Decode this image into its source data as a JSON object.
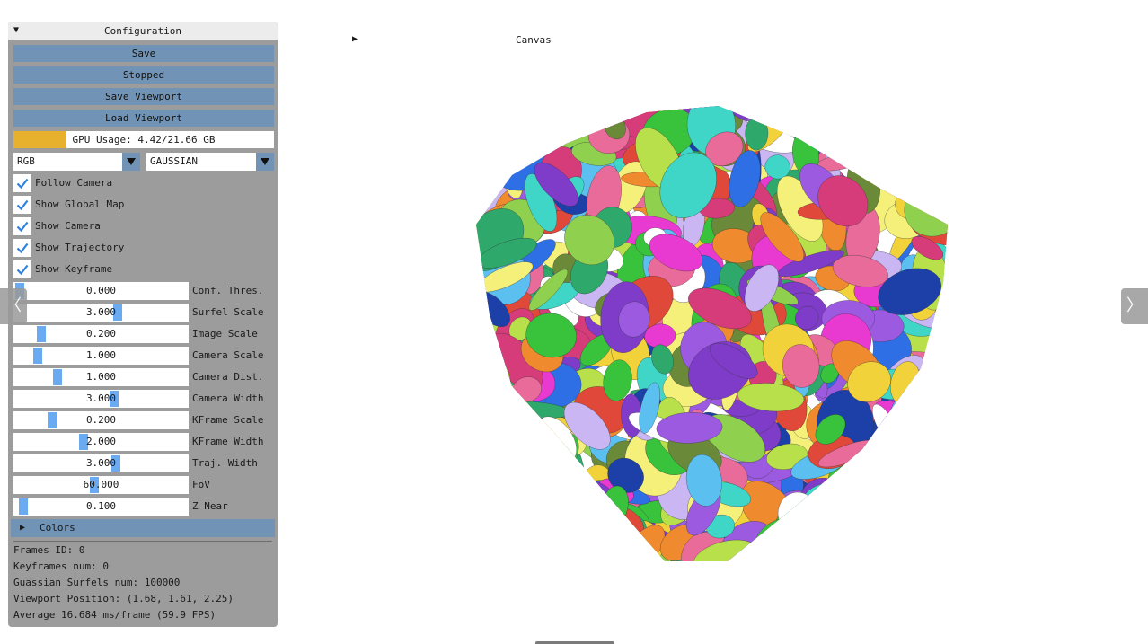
{
  "panel": {
    "title": "Configuration",
    "buttons": [
      "Save",
      "Stopped",
      "Save Viewport",
      "Load Viewport"
    ],
    "gpu": {
      "text": "GPU Usage: 4.42/21.66 GB",
      "fraction": 0.204,
      "color": "#e7b02d"
    },
    "combos": [
      {
        "value": "RGB"
      },
      {
        "value": "GAUSSIAN"
      }
    ],
    "checkboxes": [
      {
        "label": "Follow Camera",
        "checked": true
      },
      {
        "label": "Show Global Map",
        "checked": true
      },
      {
        "label": "Show Camera",
        "checked": true
      },
      {
        "label": "Show Trajectory",
        "checked": true
      },
      {
        "label": "Show Keyframe",
        "checked": true
      }
    ],
    "sliders": [
      {
        "label": "Conf. Thres.",
        "value": "0.000",
        "fraction": 0.0
      },
      {
        "label": "Surfel Scale",
        "value": "3.000",
        "fraction": 0.6
      },
      {
        "label": "Image Scale",
        "value": "0.200",
        "fraction": 0.13
      },
      {
        "label": "Camera Scale",
        "value": "1.000",
        "fraction": 0.11
      },
      {
        "label": "Camera Dist.",
        "value": "1.000",
        "fraction": 0.23
      },
      {
        "label": "Camera Width",
        "value": "3.000",
        "fraction": 0.58
      },
      {
        "label": "KFrame Scale",
        "value": "0.200",
        "fraction": 0.2
      },
      {
        "label": "KFrame Width",
        "value": "2.000",
        "fraction": 0.39
      },
      {
        "label": "Traj. Width",
        "value": "3.000",
        "fraction": 0.59
      },
      {
        "label": "FoV",
        "value": "60.000",
        "fraction": 0.46
      },
      {
        "label": "Z Near",
        "value": "0.100",
        "fraction": 0.02
      }
    ],
    "colors_section": "Colors",
    "stats": [
      "Frames ID: 0",
      "Keyframes num: 0",
      "Guassian Surfels num: 100000",
      "Viewport Position: (1.68, 1.61, 2.25)",
      "Average 16.684 ms/frame (59.9 FPS)"
    ]
  },
  "canvas": {
    "title": "Canvas"
  },
  "colors": {
    "button": "#7194b6",
    "panel": "#9c9c9c",
    "slider_grab": "#6aaaf0",
    "check": "#2f7fe0"
  }
}
